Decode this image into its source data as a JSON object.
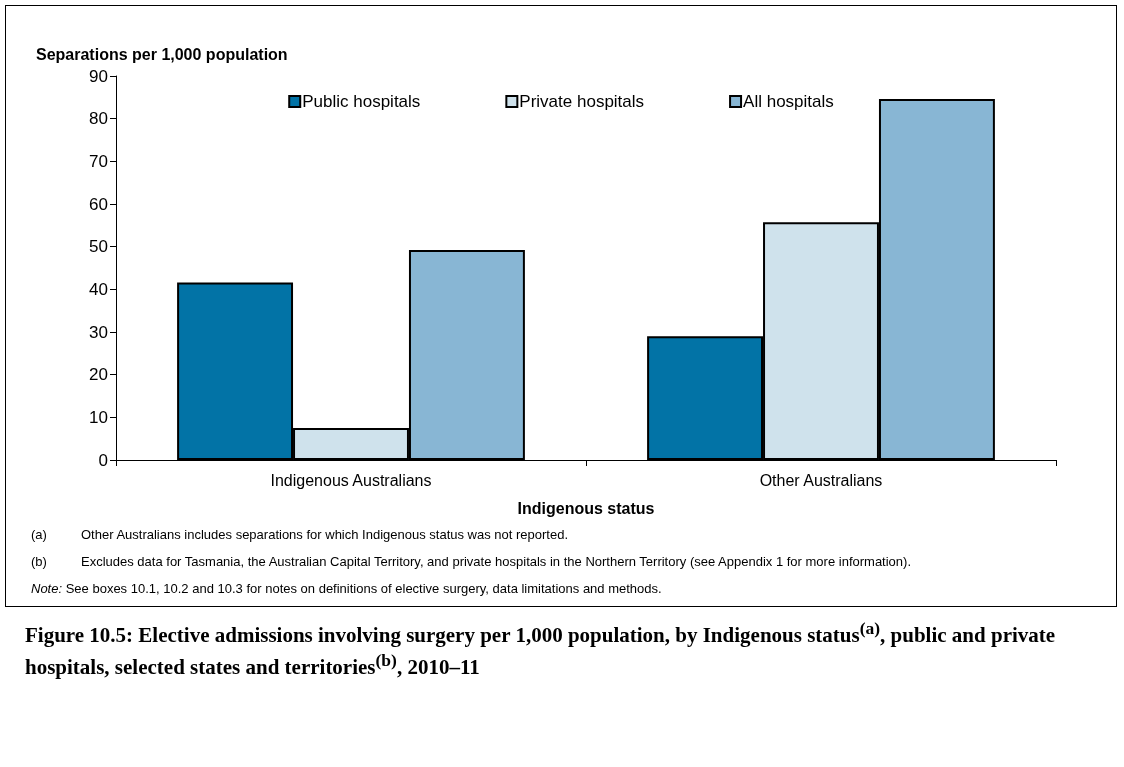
{
  "chart_data": {
    "type": "bar",
    "title": "Figure 10.5: Elective admissions involving surgery per 1,000 population, by Indigenous status$^{(a)}$, public and private hospitals, selected states and territories$^{(b)}$, 2010–11",
    "ylabel": "Separations per 1,000 population",
    "xlabel": "Indigenous status",
    "categories": [
      "Indigenous Australians",
      "Other Australians"
    ],
    "series": [
      {
        "name": "Public hospitals",
        "color": "#0273a6",
        "values": [
          41.6,
          29.0
        ]
      },
      {
        "name": "Private hospitals",
        "color": "#cfe2ec",
        "values": [
          7.5,
          55.7
        ]
      },
      {
        "name": "All hospitals",
        "color": "#88b6d4",
        "values": [
          49.2,
          84.6
        ]
      }
    ],
    "ylim": [
      0,
      90
    ],
    "yticks": [
      0,
      10,
      20,
      30,
      40,
      50,
      60,
      70,
      80,
      90
    ],
    "grid": false,
    "legend": "top",
    "annotations": [
      "(a)\tOther Australians includes separations for which Indigenous status was not reported.",
      "(b)\tExcludes data for Tasmania, the Australian Capital Territory, and private hospitals in the Northern Territory (see Appendix 1 for more information).",
      "Note: See boxes 10.1, 10.2 and 10.3 for notes on definitions of elective surgery, data limitations and methods."
    ]
  }
}
